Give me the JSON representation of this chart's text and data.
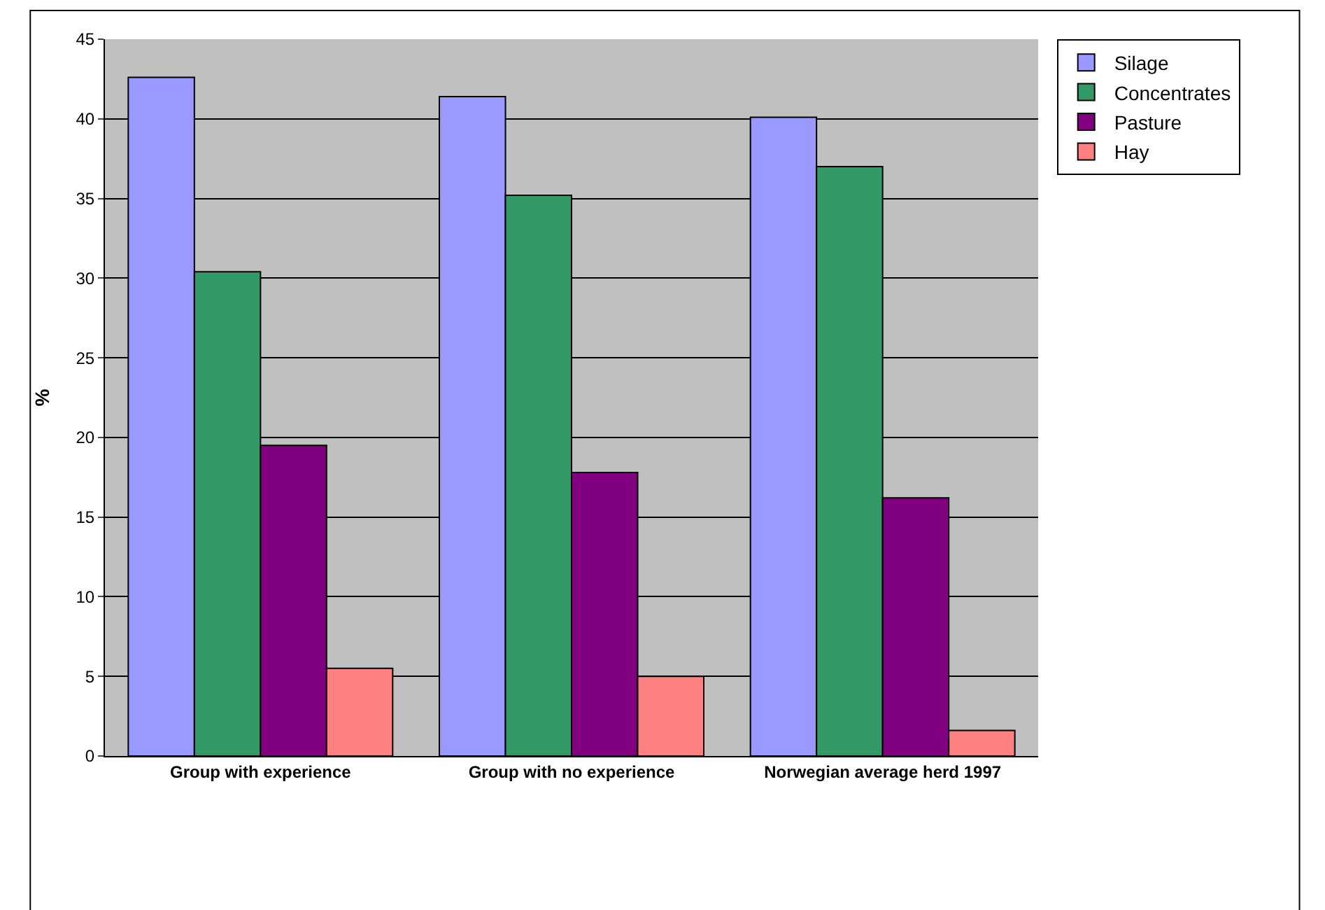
{
  "chart_data": {
    "type": "bar",
    "ylabel": "%",
    "categories": [
      "Group with experience",
      "Group with no experience",
      "Norwegian average herd 1997"
    ],
    "series": [
      {
        "name": "Silage",
        "color": "#9999ff",
        "values": [
          42.6,
          41.4,
          40.1
        ]
      },
      {
        "name": "Concentrates",
        "color": "#339966",
        "values": [
          30.4,
          35.2,
          37.0
        ]
      },
      {
        "name": "Pasture",
        "color": "#800080",
        "values": [
          19.5,
          17.8,
          16.2
        ]
      },
      {
        "name": "Hay",
        "color": "#ff8080",
        "values": [
          5.5,
          5.0,
          1.6
        ]
      }
    ],
    "ylim": [
      0,
      45
    ],
    "yticks": [
      0,
      5,
      10,
      15,
      20,
      25,
      30,
      35,
      40,
      45
    ],
    "grid": "y",
    "legend": "top right"
  }
}
